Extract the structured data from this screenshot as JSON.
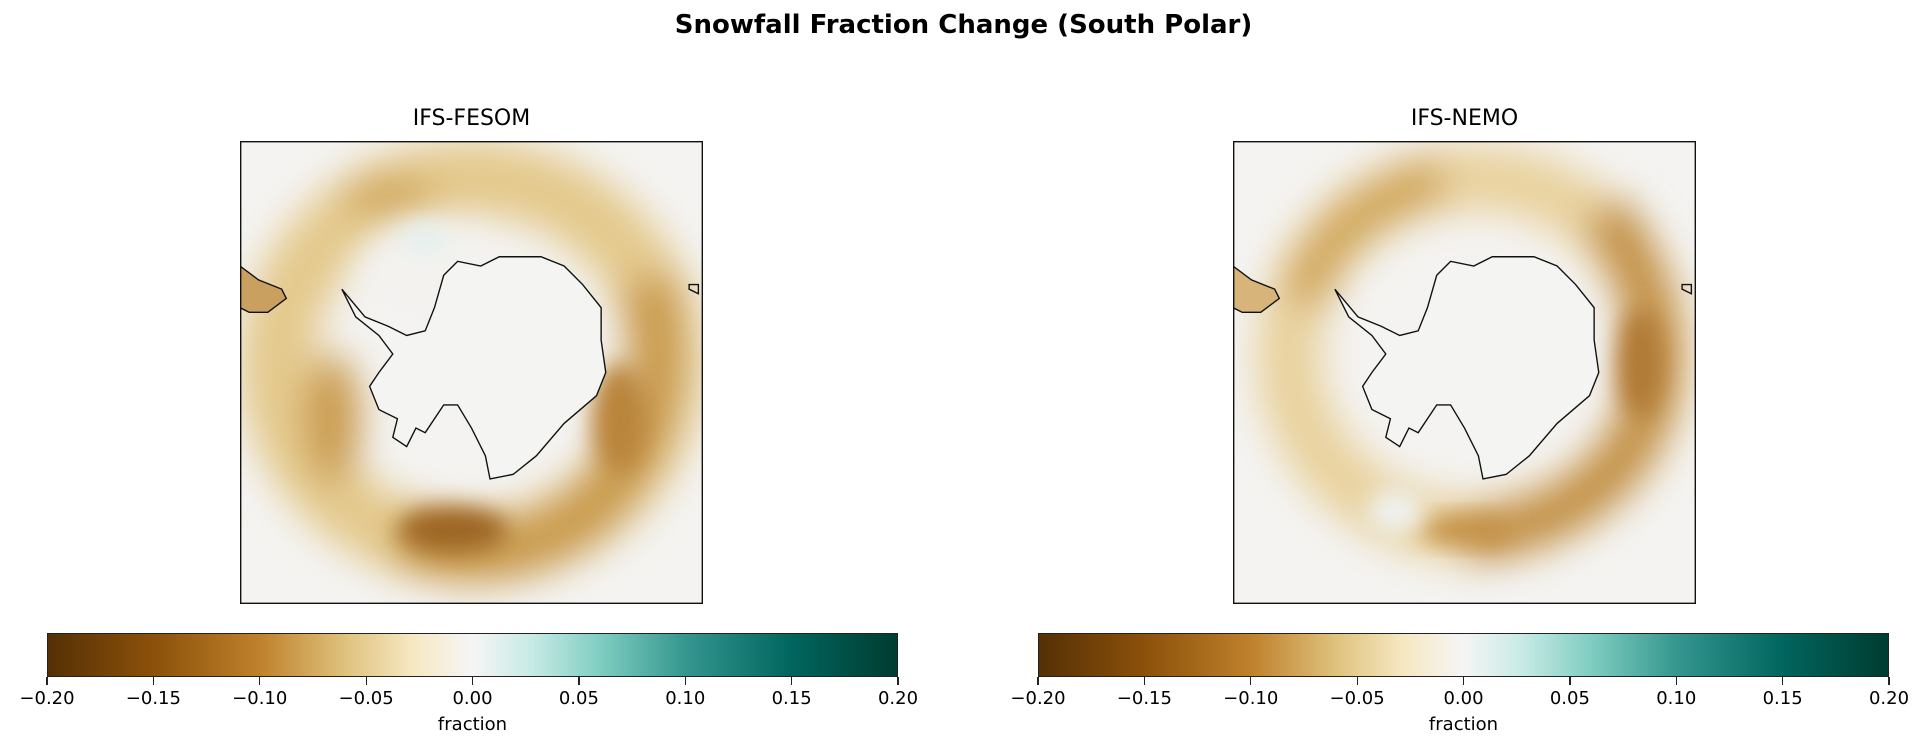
{
  "chart_data": {
    "type": "heatmap",
    "title": "Snowfall Fraction Change (South Polar)",
    "projection": "south-polar-stereographic",
    "panels": [
      {
        "title": "IFS-FESOM",
        "description_pattern": "negative ring around Antarctica, strongest near bottom (~-0.15) and right side (~-0.12)"
      },
      {
        "title": "IFS-NEMO",
        "description_pattern": "negative ring around Antarctica, strongest on right side and upper-left (~-0.12)"
      }
    ],
    "colorbar": {
      "label": "fraction",
      "range": [
        -0.2,
        0.2
      ],
      "ticks": [
        -0.2,
        -0.15,
        -0.1,
        -0.05,
        0.0,
        0.05,
        0.1,
        0.15,
        0.2
      ],
      "tick_labels": [
        "−0.20",
        "−0.15",
        "−0.10",
        "−0.05",
        "0.00",
        "0.05",
        "0.10",
        "0.15",
        "0.20"
      ],
      "colormap": [
        "#543005",
        "#8c510a",
        "#bf812d",
        "#dfc27d",
        "#f6e8c3",
        "#f5f5f5",
        "#c7eae5",
        "#80cdc1",
        "#35978f",
        "#01665e",
        "#003c30"
      ]
    }
  }
}
